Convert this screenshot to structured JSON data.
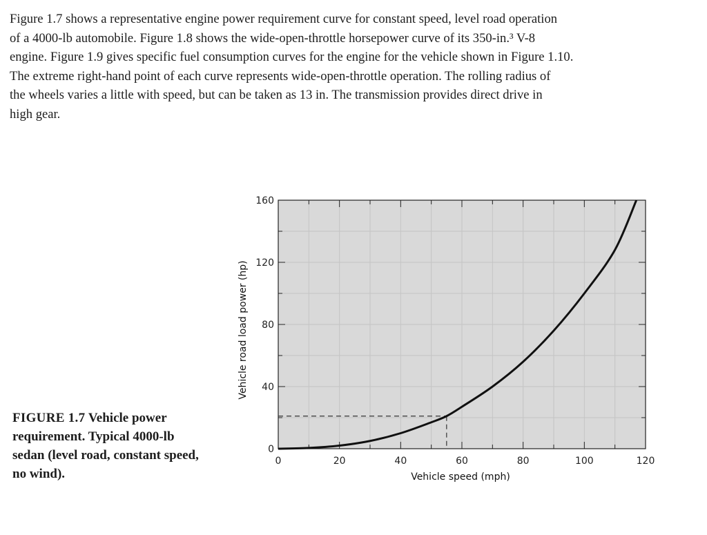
{
  "paragraph": {
    "lines": [
      "Figure 1.7 shows a representative engine power requirement curve for constant speed, level road operation",
      "of a 4000-lb automobile. Figure 1.8 shows the wide-open-throttle horsepower curve of its 350-in.³ V-8",
      "engine. Figure 1.9 gives specific fuel consumption curves for the engine for the vehicle shown in Figure 1.10.",
      "The extreme right-hand point of each curve represents wide-open-throttle operation. The rolling radius of",
      "the wheels varies a little with speed, but can be taken as 13 in. The transmission provides direct drive in",
      "high gear."
    ]
  },
  "caption": {
    "label": "FIGURE 1.7",
    "text": "Vehicle power requirement. Typical 4000-lb sedan (level road, constant speed, no wind)."
  },
  "chart_data": {
    "type": "line",
    "xlabel": "Vehicle speed (mph)",
    "ylabel": "Vehicle road load power (hp)",
    "xlim": [
      0,
      120
    ],
    "ylim": [
      0,
      160
    ],
    "x_ticks": [
      0,
      20,
      40,
      60,
      80,
      100,
      120
    ],
    "y_ticks": [
      0,
      40,
      80,
      120,
      160
    ],
    "grid": true,
    "series": [
      {
        "x": [
          0,
          10,
          20,
          30,
          40,
          50,
          55,
          60,
          70,
          80,
          90,
          100,
          110,
          117
        ],
        "values": [
          0,
          0.5,
          2,
          5,
          10,
          17,
          21,
          27,
          40,
          56,
          76,
          100,
          128,
          160
        ]
      }
    ],
    "annotations": [
      {
        "type": "reference-line",
        "x": 55,
        "y": 21
      }
    ]
  }
}
